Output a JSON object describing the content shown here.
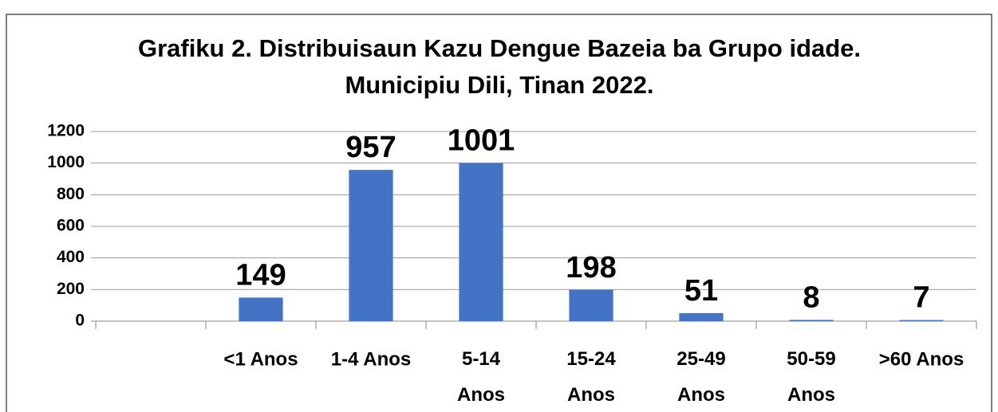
{
  "chart_data": {
    "type": "bar",
    "title": "Grafiku 2. Distribuisaun Kazu Dengue Bazeia ba Grupo idade. Municipiu Dili, Tinan 2022.",
    "categories": [
      null,
      "<1 Anos",
      "1-4 Anos",
      "5-14 Anos",
      "15-24 Anos",
      "25-49 Anos",
      "50-59 Anos",
      ">60 Anos"
    ],
    "values": [
      null,
      149,
      957,
      1001,
      198,
      51,
      8,
      7
    ],
    "color": "#4472c4",
    "ylim": [
      0,
      1200
    ],
    "yticks": [
      0,
      200,
      400,
      600,
      800,
      1000,
      1200
    ],
    "grid": true
  }
}
